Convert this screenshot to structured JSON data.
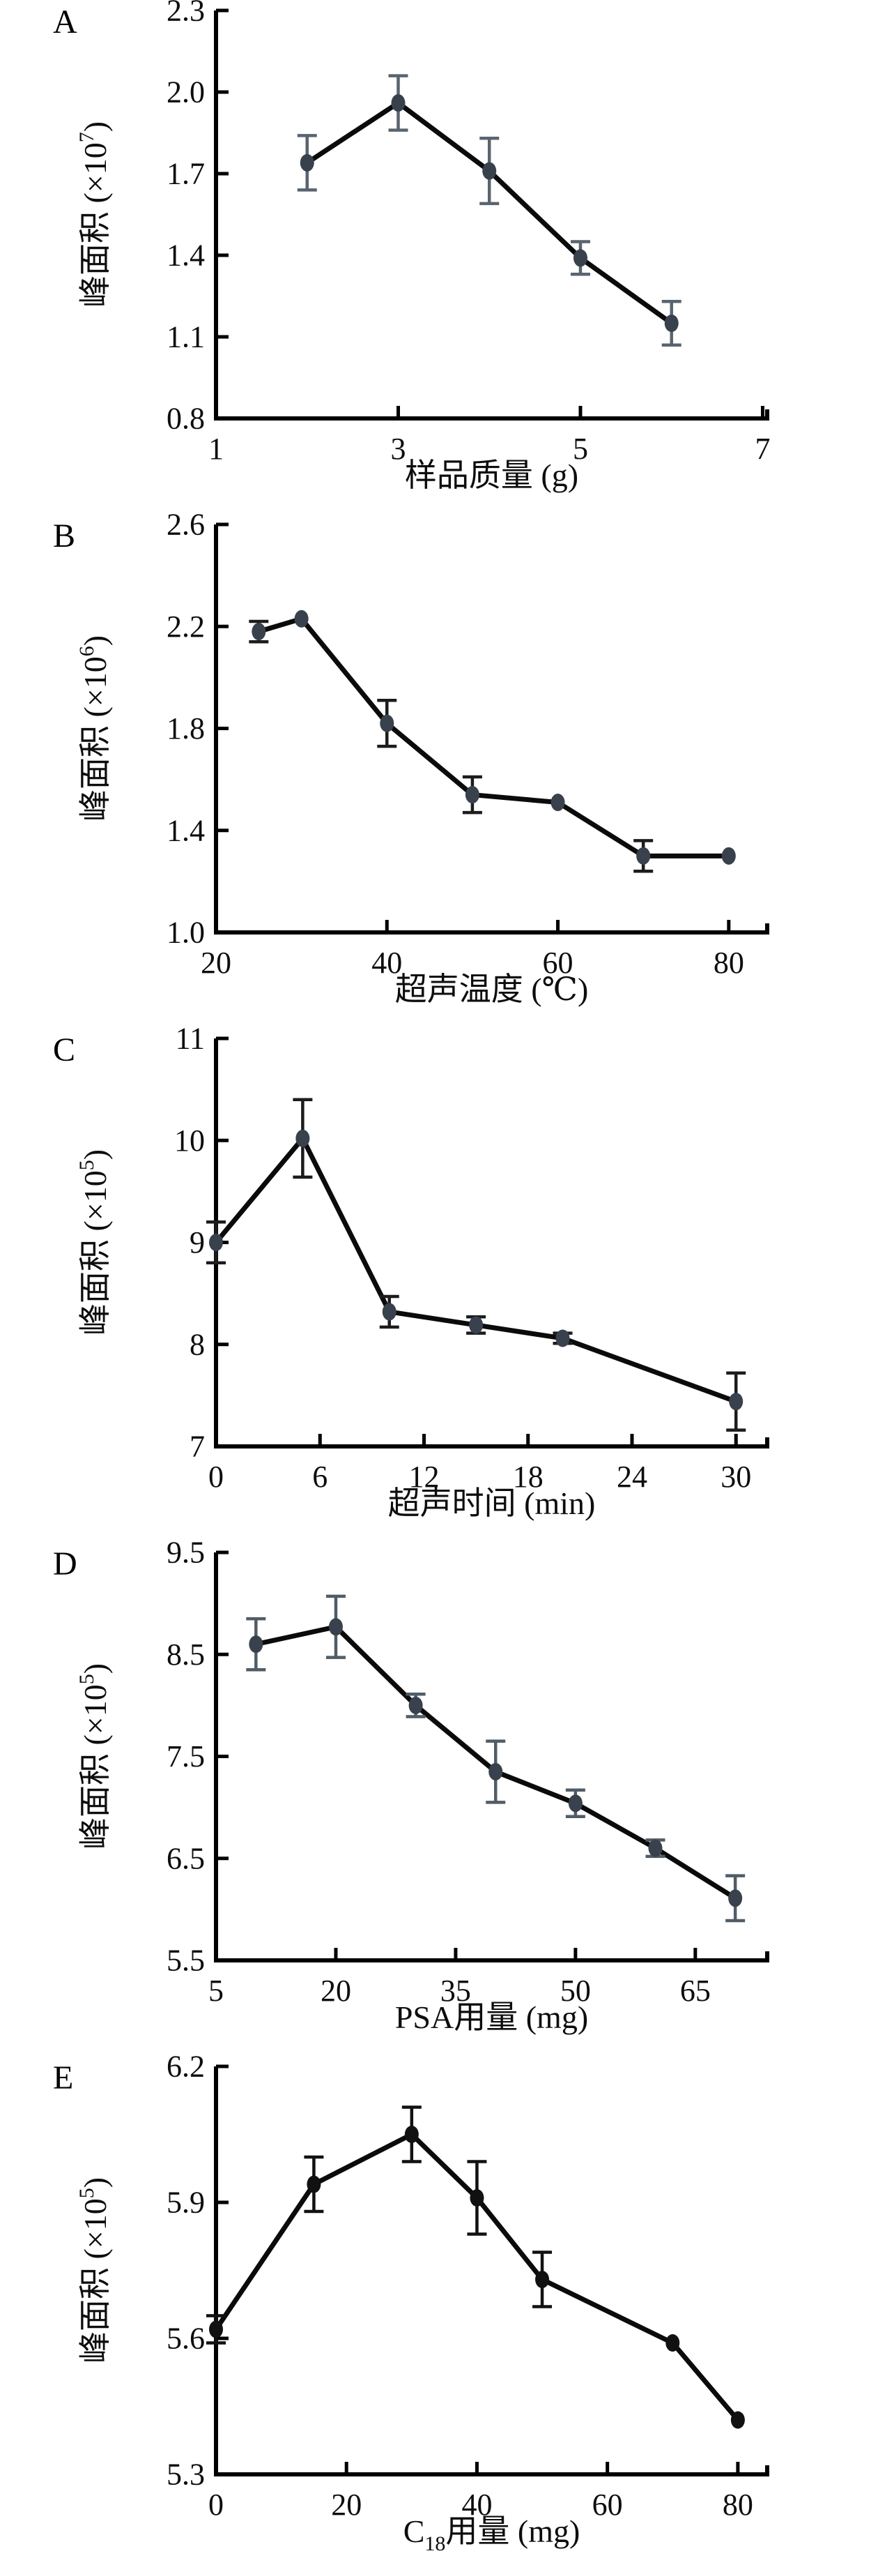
{
  "figure": {
    "description": "Five stacked line charts with error bars showing peak area versus optimization parameters",
    "panels": [
      "A",
      "B",
      "C",
      "D",
      "E"
    ]
  },
  "chart_data": [
    {
      "type": "line",
      "panel_label": "A",
      "ylabel_runs": [
        {
          "text": "峰面积 (×10"
        },
        {
          "text": "7",
          "sup": true
        },
        {
          "text": ")"
        }
      ],
      "xlabel_runs": [
        {
          "text": "样品质量 (g)"
        }
      ],
      "x": [
        2,
        3,
        4,
        5,
        6
      ],
      "y": [
        1.74,
        1.96,
        1.71,
        1.39,
        1.15
      ],
      "yerr": [
        0.1,
        0.1,
        0.12,
        0.06,
        0.08
      ],
      "xticks": [
        "1",
        "3",
        "5",
        "7"
      ],
      "yticks": [
        "0.8",
        "1.1",
        "1.4",
        "1.7",
        "2.0",
        "2.3"
      ],
      "xlim": [
        1,
        7.05
      ],
      "ylim": [
        0.8,
        2.3
      ],
      "grid": false,
      "legend": "none",
      "colors": {
        "line": "#0b0b0b",
        "marker": "#39414d",
        "error": "#5a646f"
      }
    },
    {
      "type": "line",
      "panel_label": "B",
      "ylabel_runs": [
        {
          "text": "峰面积 (×10"
        },
        {
          "text": "6",
          "sup": true
        },
        {
          "text": ")"
        }
      ],
      "xlabel_runs": [
        {
          "text": "超声温度 (℃)"
        }
      ],
      "x": [
        25,
        30,
        40,
        50,
        60,
        70,
        80
      ],
      "y": [
        2.18,
        2.23,
        1.82,
        1.54,
        1.51,
        1.3,
        1.3
      ],
      "yerr": [
        0.04,
        0,
        0.09,
        0.07,
        0,
        0.06,
        0
      ],
      "xticks": [
        "20",
        "40",
        "60",
        "80"
      ],
      "yticks": [
        "1.0",
        "1.4",
        "1.8",
        "2.2",
        "2.6"
      ],
      "xlim": [
        20,
        84.5
      ],
      "ylim": [
        1.0,
        2.6
      ],
      "grid": false,
      "legend": "none",
      "colors": {
        "line": "#0b0b0b",
        "marker": "#39414d",
        "error": "#1c1c1c"
      }
    },
    {
      "type": "line",
      "panel_label": "C",
      "ylabel_runs": [
        {
          "text": "峰面积 (×10"
        },
        {
          "text": "5",
          "sup": true
        },
        {
          "text": ")"
        }
      ],
      "xlabel_runs": [
        {
          "text": "超声时间 (min)"
        }
      ],
      "x": [
        0,
        5,
        10,
        15,
        20,
        30
      ],
      "y": [
        9.0,
        10.02,
        8.32,
        8.19,
        8.06,
        7.44
      ],
      "yerr": [
        0.2,
        0.38,
        0.15,
        0.08,
        0.05,
        0.28
      ],
      "xticks": [
        "0",
        "6",
        "12",
        "18",
        "24",
        "30"
      ],
      "yticks": [
        "7",
        "8",
        "9",
        "10",
        "11"
      ],
      "xlim": [
        0,
        31.8
      ],
      "ylim": [
        7,
        11
      ],
      "grid": false,
      "legend": "none",
      "colors": {
        "line": "#0b0b0b",
        "marker": "#39414d",
        "error": "#1c1c1c"
      }
    },
    {
      "type": "line",
      "panel_label": "D",
      "ylabel_runs": [
        {
          "text": "峰面积 (×10"
        },
        {
          "text": "5",
          "sup": true
        },
        {
          "text": ")"
        }
      ],
      "xlabel_runs": [
        {
          "text": "PSA用量 (mg)"
        }
      ],
      "x": [
        10,
        20,
        30,
        40,
        50,
        60,
        70
      ],
      "y": [
        8.6,
        8.77,
        8.0,
        7.35,
        7.04,
        6.6,
        6.11
      ],
      "yerr": [
        0.25,
        0.3,
        0.11,
        0.3,
        0.13,
        0.08,
        0.22
      ],
      "xticks": [
        "5",
        "20",
        "35",
        "50",
        "65"
      ],
      "yticks": [
        "5.5",
        "6.5",
        "7.5",
        "8.5",
        "9.5"
      ],
      "xlim": [
        5,
        74
      ],
      "ylim": [
        5.5,
        9.5
      ],
      "grid": false,
      "legend": "none",
      "colors": {
        "line": "#0b0b0b",
        "marker": "#39414d",
        "error": "#515c66"
      }
    },
    {
      "type": "line",
      "panel_label": "E",
      "ylabel_runs": [
        {
          "text": "峰面积 (×10"
        },
        {
          "text": "5",
          "sup": true
        },
        {
          "text": ")"
        }
      ],
      "xlabel_runs": [
        {
          "text": "C"
        },
        {
          "text": "18",
          "sub": true
        },
        {
          "text": "用量 (mg)"
        }
      ],
      "x": [
        0,
        15,
        30,
        40,
        50,
        70,
        80
      ],
      "y": [
        5.62,
        5.94,
        6.05,
        5.91,
        5.73,
        5.59,
        5.42
      ],
      "yerr": [
        0.03,
        0.06,
        0.06,
        0.08,
        0.06,
        0,
        0
      ],
      "xticks": [
        "0",
        "20",
        "40",
        "60",
        "80"
      ],
      "yticks": [
        "5.3",
        "5.6",
        "5.9",
        "6.2"
      ],
      "xlim": [
        0,
        84.5
      ],
      "ylim": [
        5.3,
        6.2
      ],
      "grid": false,
      "legend": "none",
      "colors": {
        "line": "#0b0b0b",
        "marker": "#111111",
        "error": "#111111"
      }
    }
  ]
}
